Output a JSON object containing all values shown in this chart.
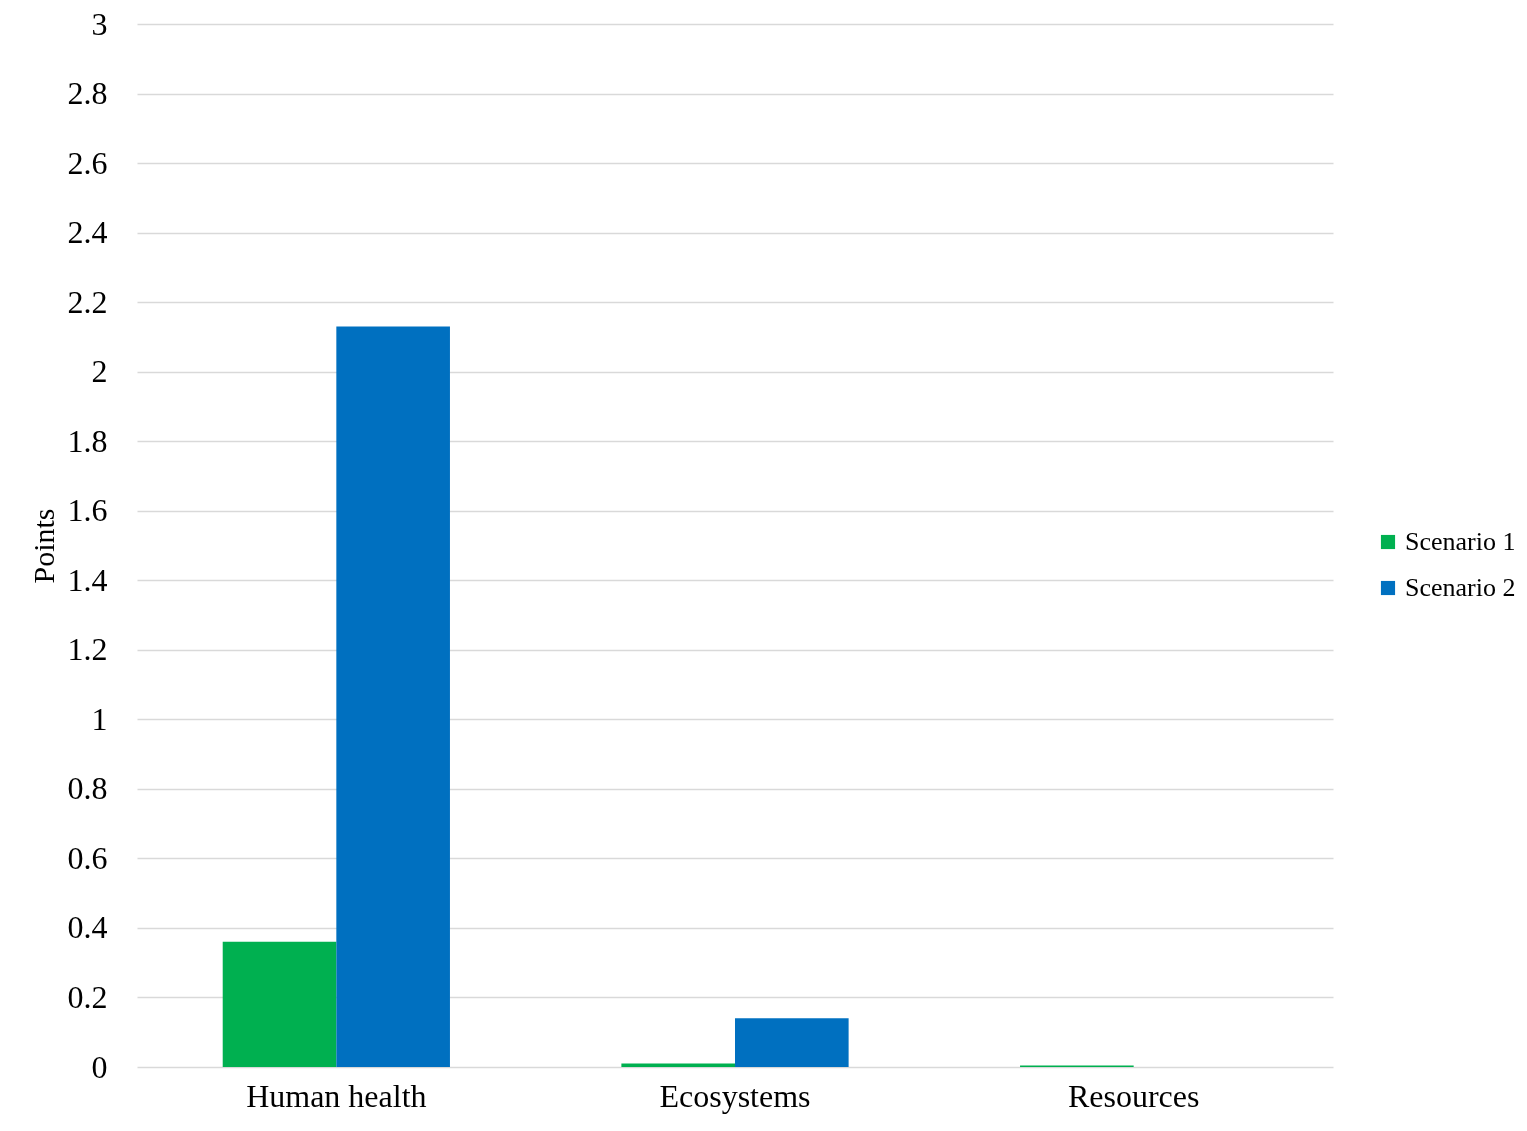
{
  "chart_data": {
    "type": "bar",
    "ylabel": "Points",
    "categories": [
      "Human health",
      "Ecosystems",
      "Resources"
    ],
    "series": [
      {
        "name": "Scenario 1",
        "color": "#00b050",
        "values": [
          0.36,
          0.01,
          0.004
        ]
      },
      {
        "name": "Scenario 2",
        "color": "#0070c0",
        "values": [
          2.13,
          0.14,
          0
        ]
      }
    ],
    "ylim": [
      0,
      3
    ],
    "yticks": [
      0,
      0.2,
      0.4,
      0.6,
      0.8,
      1,
      1.2,
      1.4,
      1.6,
      1.8,
      2,
      2.2,
      2.4,
      2.6,
      2.8,
      3
    ],
    "grid": "y",
    "legend": "right"
  }
}
